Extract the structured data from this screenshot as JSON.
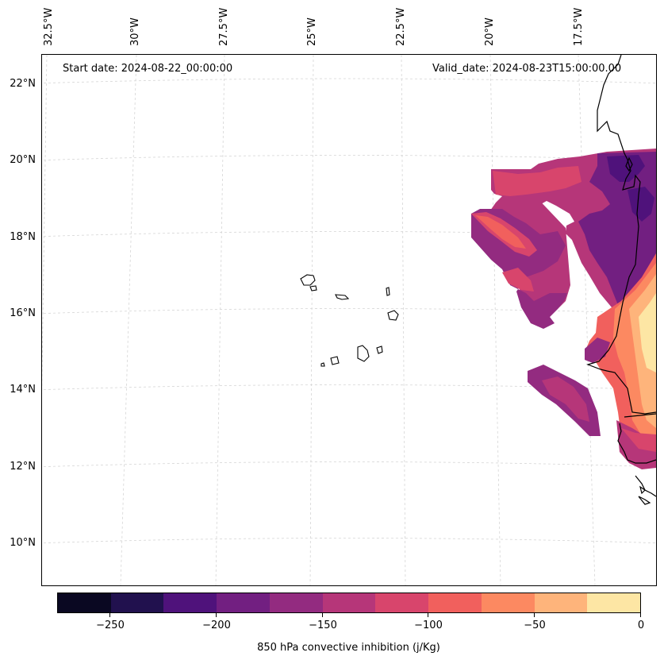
{
  "map": {
    "start_date": "Start date: 2024-08-22_00:00:00",
    "valid_date": "Valid_date: 2024-08-23T15:00:00.00",
    "lon_labels": [
      "32.5°W",
      "30°W",
      "27.5°W",
      "25°W",
      "22.5°W",
      "20°W",
      "17.5°W"
    ],
    "lat_labels": [
      "22°N",
      "20°N",
      "18°N",
      "16°N",
      "14°N",
      "12°N",
      "10°N"
    ],
    "gridlines": true,
    "coastline_color": "#000000"
  },
  "colorbar": {
    "title": "850 hPa convective inhibition (j/Kg)",
    "tick_labels": [
      "−250",
      "−200",
      "−150",
      "−100",
      "−50",
      "0"
    ],
    "levels": [
      -275,
      -250,
      -225,
      -200,
      -175,
      -150,
      -125,
      -100,
      -75,
      -50,
      -25,
      0
    ],
    "colors": [
      "#0a0822",
      "#21114e",
      "#4f127b",
      "#721f81",
      "#932b80",
      "#b63679",
      "#d8456c",
      "#f1605d",
      "#fc8961",
      "#feb47b",
      "#fde6a4"
    ],
    "colormap": "magma"
  }
}
